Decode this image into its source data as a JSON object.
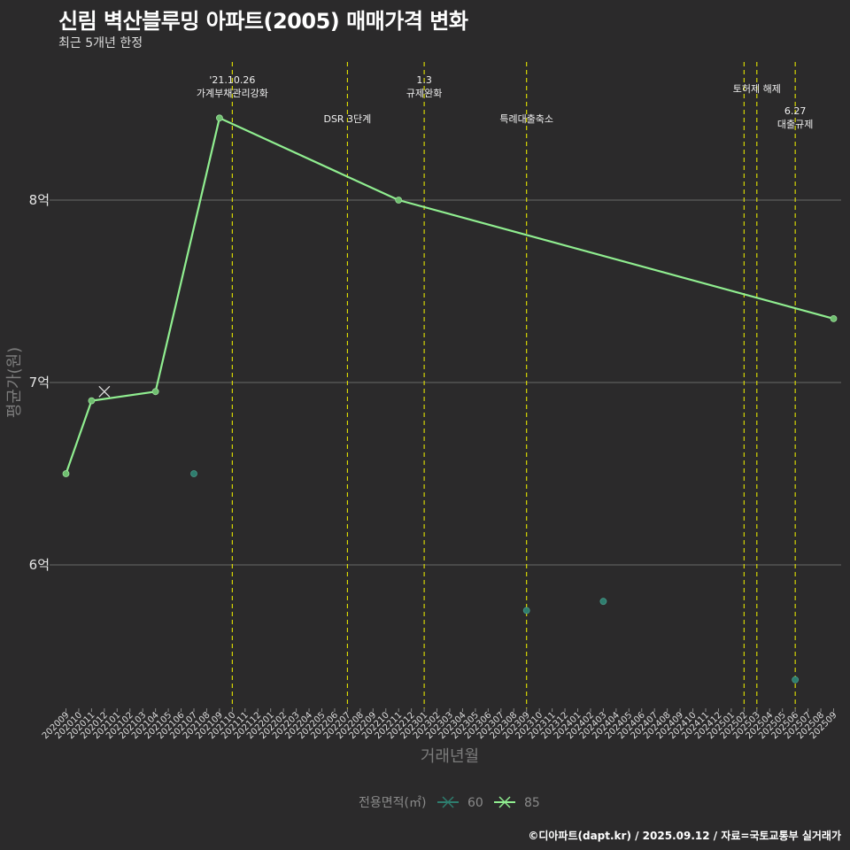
{
  "title": "신림 벽산블루밍 아파트(2005) 매매가격 변화",
  "subtitle": "최근 5개년 한정",
  "caption": "©디아파트(dapt.kr) / 2025.09.12 / 자료=국토교통부 실거래가",
  "colors": {
    "background": "#2b2a2b",
    "grid": "#6a6a6a",
    "policy_line": "#e6e600",
    "series_60": "#2e7d6e",
    "series_85": "#90ee90",
    "series_85_point": "#6fbf6f"
  },
  "chart_data": {
    "type": "line",
    "xlabel": "거래년월",
    "ylabel": "평균가(원)",
    "ylim": [
      5.25,
      8.9
    ],
    "yticks": [
      {
        "value": 6,
        "label": "6억"
      },
      {
        "value": 7,
        "label": "7억"
      },
      {
        "value": 8,
        "label": "8억"
      }
    ],
    "categories": [
      "202009",
      "202010",
      "202011",
      "202012",
      "202101",
      "202102",
      "202103",
      "202104",
      "202105",
      "202106",
      "202107",
      "202108",
      "202109",
      "202110",
      "202111",
      "202112",
      "202201",
      "202202",
      "202203",
      "202204",
      "202205",
      "202206",
      "202207",
      "202208",
      "202209",
      "202210",
      "202211",
      "202212",
      "202301",
      "202302",
      "202303",
      "202304",
      "202305",
      "202306",
      "202307",
      "202308",
      "202309",
      "202310",
      "202311",
      "202312",
      "202401",
      "202402",
      "202403",
      "202404",
      "202405",
      "202406",
      "202407",
      "202408",
      "202409",
      "202410",
      "202411",
      "202412",
      "202501",
      "202502",
      "202503",
      "202504",
      "202505",
      "202506",
      "202507",
      "202508",
      "202509"
    ],
    "series": [
      {
        "name": "60",
        "line": false,
        "points": [
          {
            "x": "202107",
            "y": 6.5
          },
          {
            "x": "202309",
            "y": 5.75
          },
          {
            "x": "202403",
            "y": 5.8
          },
          {
            "x": "202506",
            "y": 5.37
          }
        ]
      },
      {
        "name": "85",
        "line": true,
        "points": [
          {
            "x": "202009",
            "y": 6.5
          },
          {
            "x": "202011",
            "y": 6.9
          },
          {
            "x": "202104",
            "y": 6.95
          },
          {
            "x": "202109",
            "y": 8.45
          },
          {
            "x": "202211",
            "y": 8.0
          },
          {
            "x": "202509",
            "y": 7.35
          }
        ],
        "cross_marker": {
          "x": "202012",
          "y": 6.95
        }
      }
    ],
    "policy_events": [
      {
        "x": "202110",
        "lines": [
          "'21.10.26",
          "가계부채관리강화"
        ],
        "level": 0
      },
      {
        "x": "202207",
        "lines": [
          "DSR 3단계"
        ],
        "level": 2
      },
      {
        "x": "202301",
        "lines": [
          "1.3",
          "규제완화"
        ],
        "level": 0
      },
      {
        "x": "202309",
        "lines": [
          "특례대출축소"
        ],
        "level": 2
      },
      {
        "x": "202502",
        "lines": [],
        "level": 0
      },
      {
        "x": "202503",
        "lines": [
          "토허제 해제"
        ],
        "level": 1
      },
      {
        "x": "202506",
        "lines": [
          "6.27",
          "대출규제"
        ],
        "level": 3
      }
    ],
    "legend": {
      "title": "전용면적(㎡)",
      "items": [
        {
          "label": "60",
          "color": "#2e7d6e"
        },
        {
          "label": "85",
          "color": "#90ee90"
        }
      ],
      "position": "bottom"
    }
  }
}
